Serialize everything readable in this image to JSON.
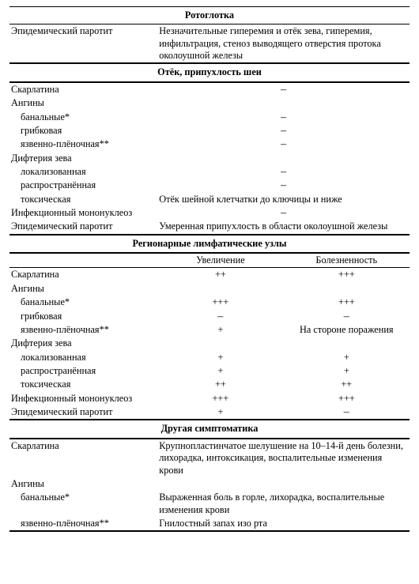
{
  "sections": {
    "rotoglotka": {
      "title": "Ротоглотка",
      "rows": [
        {
          "disease": "Эпидемический паротит",
          "desc": "Незначительные гиперемия и отёк зева, гиперемия, инфильтрация, стеноз выводящего отверстия протока околоушной железы"
        }
      ]
    },
    "otek": {
      "title": "Отёк, припухлость шеи",
      "rows": [
        {
          "disease": "Скарлатина",
          "desc": "–"
        },
        {
          "disease": "Ангины",
          "desc": ""
        },
        {
          "disease": "банальные*",
          "indent": true,
          "desc": "–"
        },
        {
          "disease": "грибковая",
          "indent": true,
          "desc": "–"
        },
        {
          "disease": "язвенно-плёночная**",
          "indent": true,
          "desc": "–"
        },
        {
          "disease": "Дифтерия зева",
          "desc": ""
        },
        {
          "disease": "локализованная",
          "indent": true,
          "desc": "–"
        },
        {
          "disease": "распространённая",
          "indent": true,
          "desc": "–"
        },
        {
          "disease": "токсическая",
          "indent": true,
          "desc": "Отёк шейной клетчатки до ключицы и ниже"
        },
        {
          "disease": "Инфекционный мононуклеоз",
          "desc": "–"
        },
        {
          "disease": "Эпидемический паротит",
          "desc": "Умеренная припухлость в области околоушной железы"
        }
      ]
    },
    "lymph": {
      "title": "Регионарные лимфатические узлы",
      "head_b": "Увеличение",
      "head_c": "Болезненность",
      "rows": [
        {
          "a": "Скарлатина",
          "b": "++",
          "c": "+++"
        },
        {
          "a": "Ангины",
          "b": "",
          "c": ""
        },
        {
          "a": "банальные*",
          "indent": true,
          "b": "+++",
          "c": "+++"
        },
        {
          "a": "грибковая",
          "indent": true,
          "b": "–",
          "c": "–"
        },
        {
          "a": "язвенно-плёночная**",
          "indent": true,
          "b": "+",
          "c": "На стороне поражения"
        },
        {
          "a": "Дифтерия зева",
          "b": "",
          "c": ""
        },
        {
          "a": "локализованная",
          "indent": true,
          "b": "+",
          "c": "+"
        },
        {
          "a": "распространённая",
          "indent": true,
          "b": "+",
          "c": "+"
        },
        {
          "a": "токсическая",
          "indent": true,
          "b": "++",
          "c": "++"
        },
        {
          "a": "Инфекционный мононуклеоз",
          "b": "+++",
          "c": "+++"
        },
        {
          "a": "Эпидемический паротит",
          "b": "+",
          "c": "–"
        }
      ]
    },
    "other": {
      "title": "Другая симптоматика",
      "rows": [
        {
          "disease": "Скарлатина",
          "desc": "Крупнопластинчатое шелушение на 10–14-й день болезни, лихорадка, интоксикация, воспалительные изменения крови"
        },
        {
          "disease": "Ангины",
          "desc": ""
        },
        {
          "disease": "банальные*",
          "indent": true,
          "desc": "Выраженная боль в горле, лихорадка, воспалительные изменения крови"
        },
        {
          "disease": "язвенно-плёночная**",
          "indent": true,
          "desc": "Гнилостный запах изо рта"
        }
      ]
    }
  }
}
